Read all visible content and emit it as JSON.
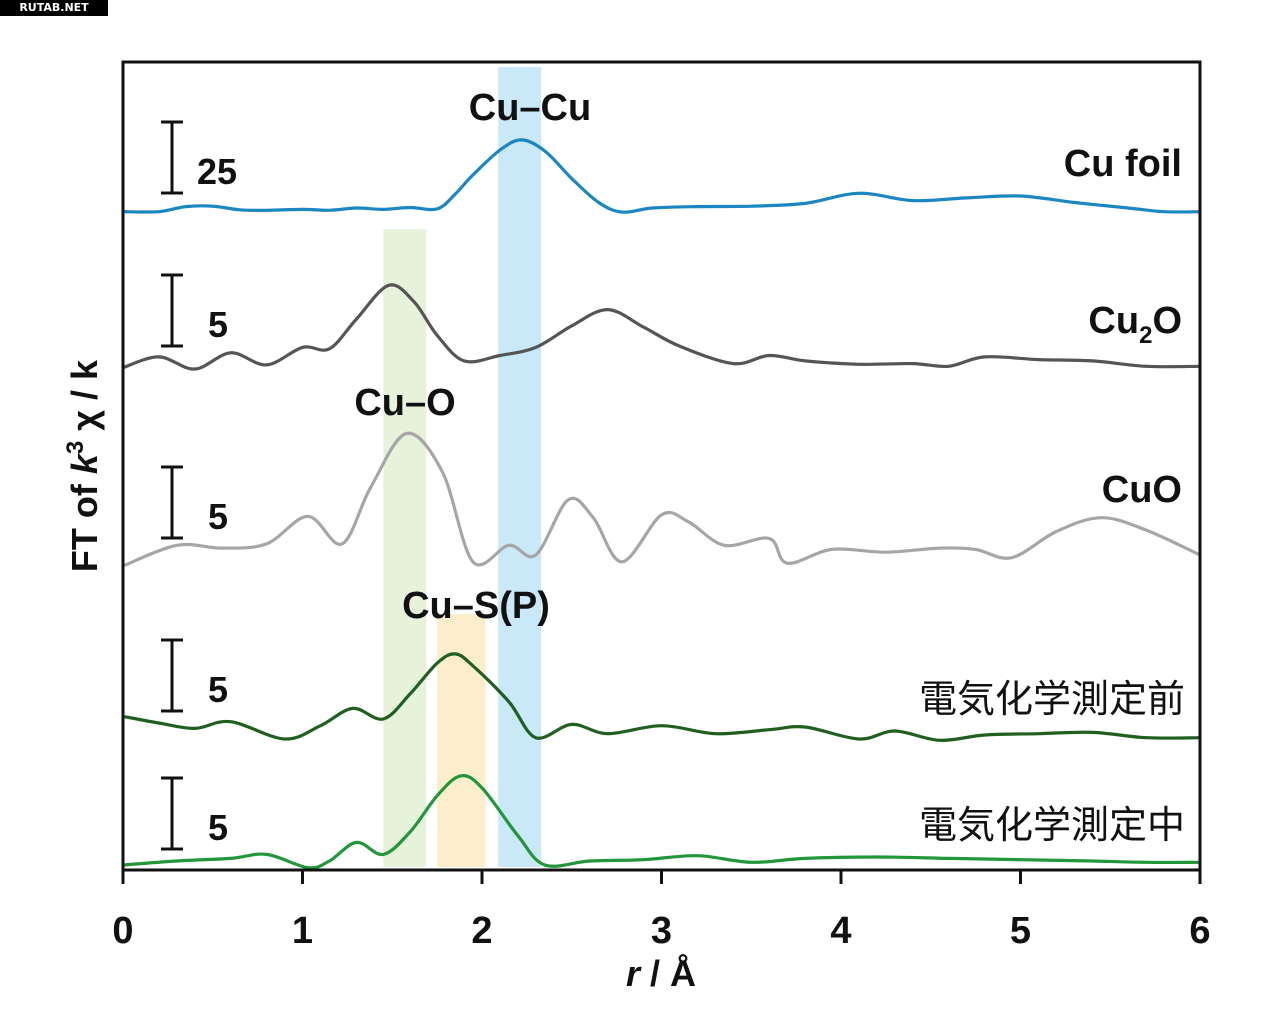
{
  "watermark": "RUTAB.NET",
  "chart_data": {
    "type": "line",
    "xlabel_italic": "r",
    "xlabel_rest": " / Å",
    "ylabel": {
      "prefix": "FT of ",
      "k": "k",
      "k_sup": "3",
      "rest": " χ / k"
    },
    "xlim": [
      0,
      6
    ],
    "xticks": [
      "0",
      "1",
      "2",
      "3",
      "4",
      "5",
      "6"
    ],
    "bands": [
      {
        "name": "Cu–O",
        "from": 1.45,
        "to": 1.69,
        "color": "#e3f0d4"
      },
      {
        "name": "Cu–S(P)",
        "from": 1.75,
        "to": 2.02,
        "color": "#fbeac3"
      },
      {
        "name": "Cu–Cu",
        "from": 2.09,
        "to": 2.33,
        "color": "#bfe5f8"
      }
    ],
    "peak_labels": [
      "Cu–Cu",
      "Cu–O",
      "Cu–S(P)"
    ],
    "series": [
      {
        "name": "Cu foil",
        "color": "#1a86c2",
        "scale": "25",
        "points": [
          [
            0,
            -0.4
          ],
          [
            0.2,
            -0.4
          ],
          [
            0.35,
            0.15
          ],
          [
            0.5,
            0.2
          ],
          [
            0.65,
            -0.2
          ],
          [
            0.8,
            -0.25
          ],
          [
            1.0,
            -0.15
          ],
          [
            1.15,
            -0.25
          ],
          [
            1.3,
            0.0
          ],
          [
            1.45,
            -0.15
          ],
          [
            1.6,
            0.05
          ],
          [
            1.75,
            -0.1
          ],
          [
            1.85,
            1.5
          ],
          [
            1.95,
            3.6
          ],
          [
            2.1,
            6.3
          ],
          [
            2.22,
            7.4
          ],
          [
            2.35,
            6.2
          ],
          [
            2.5,
            3.2
          ],
          [
            2.65,
            0.6
          ],
          [
            2.78,
            -0.45
          ],
          [
            2.95,
            0.0
          ],
          [
            3.2,
            0.15
          ],
          [
            3.5,
            0.2
          ],
          [
            3.8,
            0.5
          ],
          [
            4.1,
            1.6
          ],
          [
            4.4,
            0.8
          ],
          [
            4.7,
            1.1
          ],
          [
            5.0,
            1.3
          ],
          [
            5.3,
            0.6
          ],
          [
            5.6,
            0.0
          ],
          [
            5.8,
            -0.4
          ],
          [
            6.0,
            -0.4
          ]
        ]
      },
      {
        "name_base": "Cu",
        "name_sub": "2",
        "name_tail": "O",
        "color": "#555555",
        "scale": "5",
        "points": [
          [
            0,
            0.1
          ],
          [
            0.2,
            0.9
          ],
          [
            0.4,
            0.0
          ],
          [
            0.6,
            1.2
          ],
          [
            0.8,
            0.3
          ],
          [
            1.0,
            1.6
          ],
          [
            1.15,
            1.5
          ],
          [
            1.3,
            3.7
          ],
          [
            1.48,
            6.2
          ],
          [
            1.62,
            5.0
          ],
          [
            1.75,
            2.5
          ],
          [
            1.9,
            0.6
          ],
          [
            2.1,
            1.0
          ],
          [
            2.3,
            1.6
          ],
          [
            2.5,
            3.2
          ],
          [
            2.7,
            4.4
          ],
          [
            2.9,
            3.1
          ],
          [
            3.1,
            1.7
          ],
          [
            3.4,
            0.4
          ],
          [
            3.6,
            1.0
          ],
          [
            3.8,
            0.6
          ],
          [
            4.1,
            0.35
          ],
          [
            4.4,
            0.4
          ],
          [
            4.6,
            0.2
          ],
          [
            4.8,
            0.9
          ],
          [
            5.1,
            0.7
          ],
          [
            5.4,
            0.6
          ],
          [
            5.7,
            0.2
          ],
          [
            6.0,
            0.2
          ]
        ]
      },
      {
        "name": "CuO",
        "color": "#a6a6a6",
        "scale": "5",
        "points": [
          [
            0,
            0.0
          ],
          [
            0.3,
            1.5
          ],
          [
            0.55,
            1.3
          ],
          [
            0.8,
            1.6
          ],
          [
            1.03,
            3.6
          ],
          [
            1.22,
            1.6
          ],
          [
            1.38,
            5.7
          ],
          [
            1.58,
            9.6
          ],
          [
            1.78,
            6.8
          ],
          [
            1.95,
            0.3
          ],
          [
            2.15,
            1.5
          ],
          [
            2.3,
            0.8
          ],
          [
            2.48,
            4.8
          ],
          [
            2.62,
            3.5
          ],
          [
            2.78,
            0.3
          ],
          [
            3.0,
            3.7
          ],
          [
            3.15,
            3.2
          ],
          [
            3.35,
            1.5
          ],
          [
            3.6,
            2.0
          ],
          [
            3.7,
            0.2
          ],
          [
            3.95,
            1.2
          ],
          [
            4.25,
            1.0
          ],
          [
            4.55,
            1.3
          ],
          [
            4.75,
            1.2
          ],
          [
            4.95,
            0.6
          ],
          [
            5.2,
            2.5
          ],
          [
            5.45,
            3.5
          ],
          [
            5.7,
            2.6
          ],
          [
            6.0,
            0.8
          ]
        ]
      },
      {
        "name": "電気化学測定前",
        "color": "#1f5f1f",
        "scale": "5",
        "points": [
          [
            0,
            1.7
          ],
          [
            0.2,
            1.2
          ],
          [
            0.4,
            0.8
          ],
          [
            0.6,
            1.3
          ],
          [
            0.9,
            0.0
          ],
          [
            1.1,
            1.0
          ],
          [
            1.28,
            2.3
          ],
          [
            1.45,
            1.5
          ],
          [
            1.6,
            3.4
          ],
          [
            1.75,
            5.7
          ],
          [
            1.85,
            6.4
          ],
          [
            1.95,
            5.5
          ],
          [
            2.15,
            2.8
          ],
          [
            2.3,
            0.1
          ],
          [
            2.5,
            1.1
          ],
          [
            2.7,
            0.4
          ],
          [
            3.0,
            1.0
          ],
          [
            3.3,
            0.4
          ],
          [
            3.6,
            0.7
          ],
          [
            3.8,
            0.9
          ],
          [
            4.1,
            0.0
          ],
          [
            4.3,
            0.6
          ],
          [
            4.55,
            -0.1
          ],
          [
            4.8,
            0.3
          ],
          [
            5.1,
            0.4
          ],
          [
            5.4,
            0.5
          ],
          [
            5.7,
            0.1
          ],
          [
            6.0,
            0.1
          ]
        ]
      },
      {
        "name": "電気化学測定中",
        "color": "#22973a",
        "scale": "5",
        "points": [
          [
            0,
            0.0
          ],
          [
            0.3,
            0.3
          ],
          [
            0.6,
            0.5
          ],
          [
            0.8,
            0.8
          ],
          [
            1.03,
            -0.2
          ],
          [
            1.15,
            0.3
          ],
          [
            1.3,
            1.7
          ],
          [
            1.45,
            0.8
          ],
          [
            1.6,
            2.5
          ],
          [
            1.75,
            5.2
          ],
          [
            1.88,
            6.7
          ],
          [
            2.0,
            5.8
          ],
          [
            2.2,
            2.2
          ],
          [
            2.35,
            0.0
          ],
          [
            2.6,
            0.3
          ],
          [
            2.9,
            0.4
          ],
          [
            3.2,
            0.7
          ],
          [
            3.5,
            0.2
          ],
          [
            3.8,
            0.5
          ],
          [
            4.2,
            0.6
          ],
          [
            4.6,
            0.5
          ],
          [
            5.0,
            0.4
          ],
          [
            5.4,
            0.3
          ],
          [
            5.7,
            0.2
          ],
          [
            6.0,
            0.2
          ]
        ]
      }
    ]
  }
}
